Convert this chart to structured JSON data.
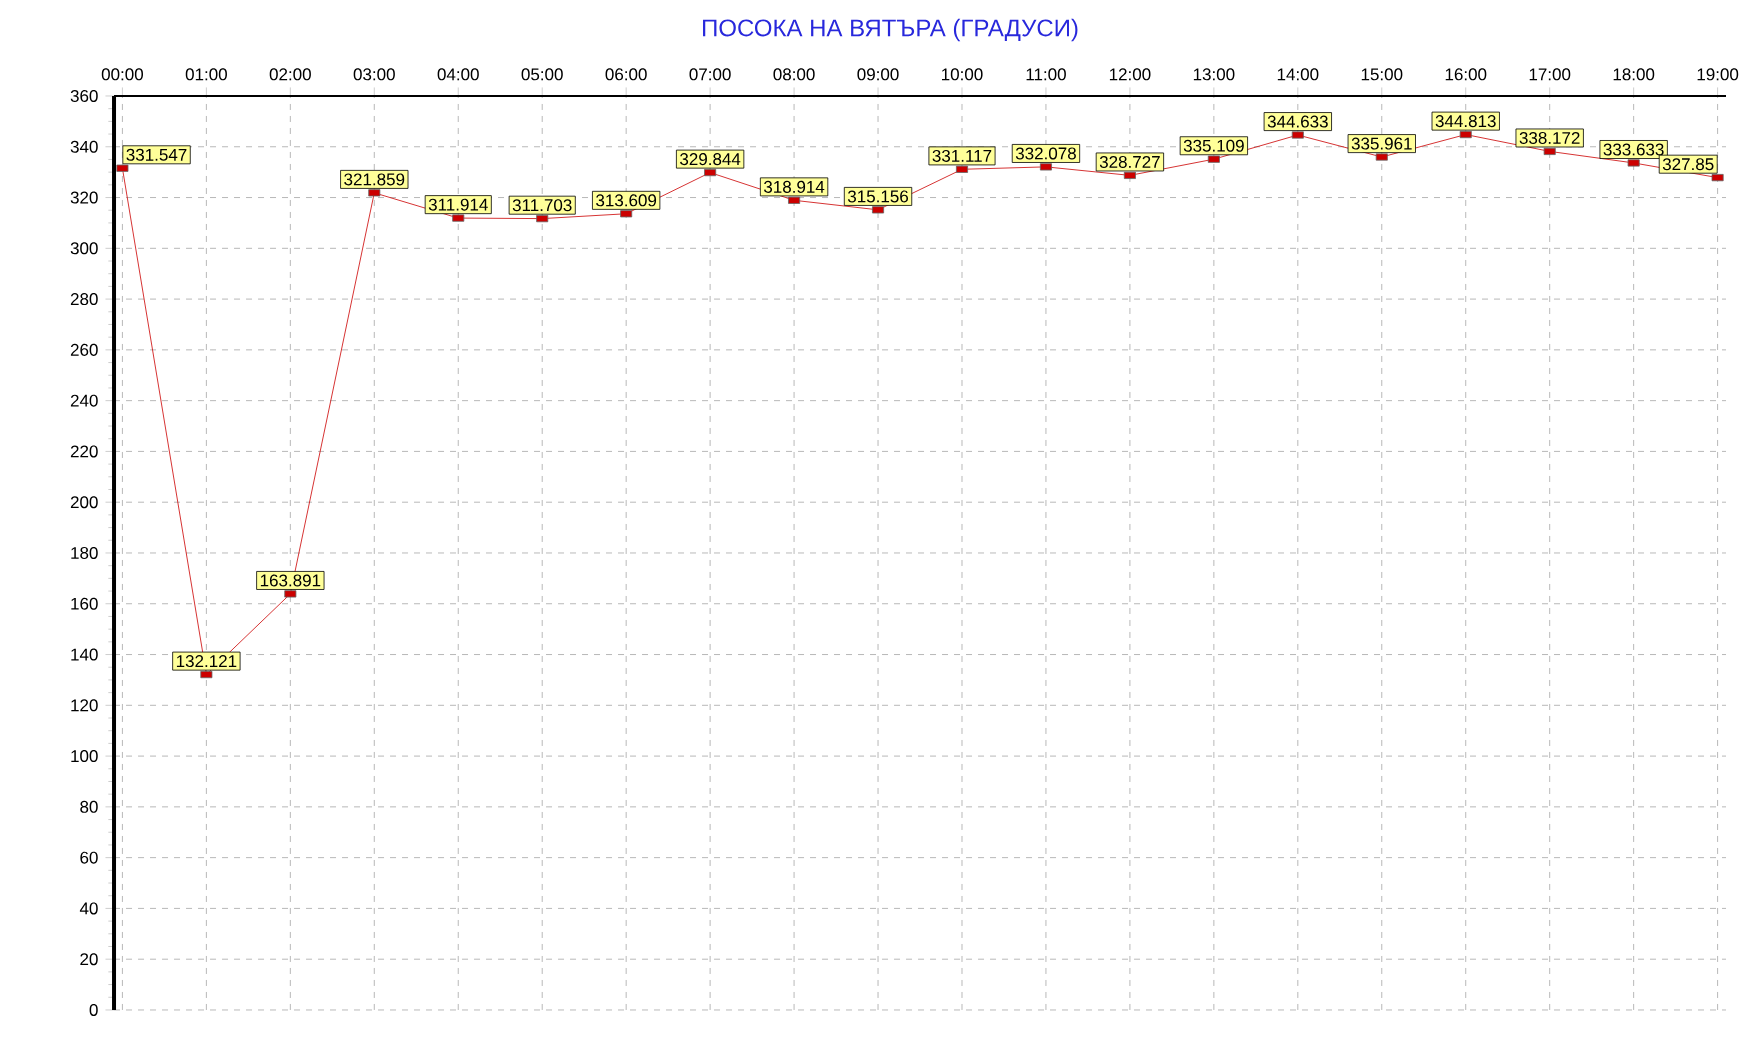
{
  "chart_data": {
    "type": "line",
    "title": "ПОСОКА НА ВЯТЪРА    (ГРАДУСИ)",
    "categories": [
      "00:00",
      "01:00",
      "02:00",
      "03:00",
      "04:00",
      "05:00",
      "06:00",
      "07:00",
      "08:00",
      "09:00",
      "10:00",
      "11:00",
      "12:00",
      "13:00",
      "14:00",
      "15:00",
      "16:00",
      "17:00",
      "18:00",
      "19:00"
    ],
    "series": [
      {
        "color": "#cc0000",
        "values": [
          331.547,
          132.121,
          163.891,
          321.859,
          311.914,
          311.703,
          313.609,
          329.844,
          318.914,
          315.156,
          331.117,
          332.078,
          328.727,
          335.109,
          344.633,
          335.961,
          344.813,
          338.172,
          333.633,
          327.85
        ],
        "value_labels": [
          "331.547",
          "132.121",
          "163.891",
          "321.859",
          "311.914",
          "311.703",
          "313.609",
          "329.844",
          "318.914",
          "315.156",
          "331.117",
          "332.078",
          "328.727",
          "335.109",
          "344.633",
          "335.961",
          "344.813",
          "338.172",
          "333.633",
          "327.85"
        ]
      }
    ],
    "ylim": [
      0,
      360
    ],
    "yticks": [
      0,
      20,
      40,
      60,
      80,
      100,
      120,
      140,
      160,
      180,
      200,
      220,
      240,
      260,
      280,
      300,
      320,
      340,
      360
    ],
    "grid": true,
    "marker": "square",
    "line_style": "solid"
  }
}
